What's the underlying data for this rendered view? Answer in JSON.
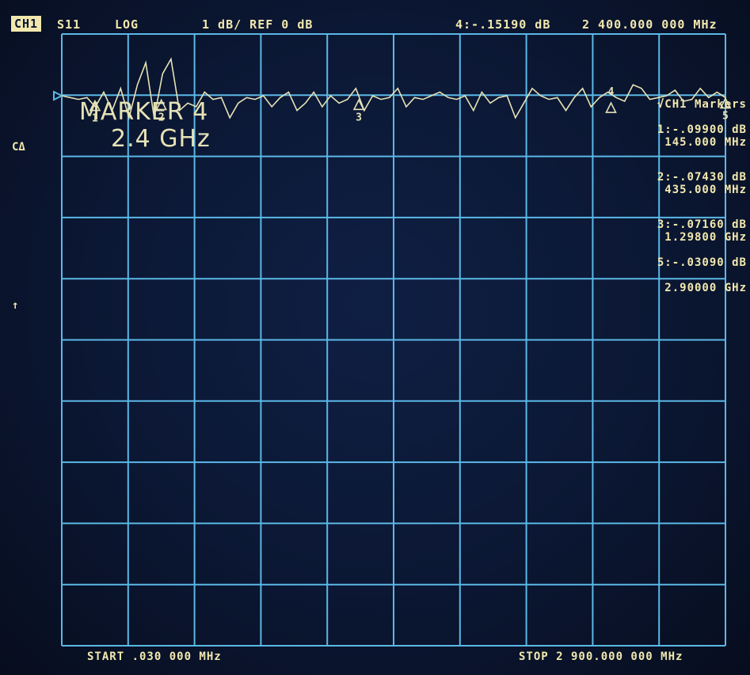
{
  "header": {
    "channel": "CH1",
    "parameter": "S11",
    "format": "LOG",
    "scale": "1 dB/ REF 0 dB",
    "active_marker_readout": "4:-.15190 dB",
    "active_marker_freq": "2 400.000 000 MHz"
  },
  "side": {
    "mode": "CΔ",
    "ref_arrow": "↑"
  },
  "marker_note": {
    "line1": "MARKER 4",
    "line2": "2.4 GHz"
  },
  "marker_list": {
    "title": "√CH1 Markers",
    "items": [
      {
        "label": "1:-.09900 dB",
        "freq": "145.000 MHz"
      },
      {
        "label": "2:-.07430 dB",
        "freq": "435.000 MHz"
      },
      {
        "label": "3:-.07160 dB",
        "freq": "1.29800 GHz"
      },
      {
        "label": "5:-.03090 dB",
        "freq": "2.90000 GHz"
      }
    ]
  },
  "markers_on_trace": [
    "1",
    "2",
    "3",
    "4",
    "5"
  ],
  "footer": {
    "start": "START .030 000 MHz",
    "stop": "STOP 2 900.000 000 MHz"
  },
  "colors": {
    "grid": "#5bb8e6",
    "trace": "#e6e2b6",
    "annotation": "#f2e8ae"
  },
  "chart_data": {
    "type": "line",
    "xlim_mhz": [
      0.03,
      2900
    ],
    "ylim_db": [
      -10,
      0
    ],
    "x_divisions": 10,
    "y_divisions": 10,
    "reference_db": 0,
    "scale_db_per_div": 1,
    "grid": true,
    "series": [
      {
        "values_db": [
          0,
          -0.05,
          -0.1,
          -0.05,
          -0.3,
          0.1,
          -0.4,
          0.2,
          -0.6,
          0.3,
          0.9,
          -0.6,
          0.6,
          1.0,
          -0.4,
          -0.2,
          -0.3,
          0.1,
          -0.1,
          -0.05,
          -0.6,
          -0.2,
          -0.05,
          -0.1,
          0,
          -0.3,
          -0.05,
          0.1,
          -0.4,
          -0.2,
          0.1,
          -0.3,
          0,
          -0.2,
          -0.1,
          0.2,
          -0.4,
          0,
          -0.1,
          -0.05,
          0.2,
          -0.3,
          -0.05,
          -0.1,
          0,
          0.1,
          -0.05,
          -0.1,
          0,
          -0.4,
          0.1,
          -0.2,
          -0.05,
          0,
          -0.6,
          -0.2,
          0.2,
          0,
          -0.1,
          -0.05,
          -0.4,
          -0.05,
          0.2,
          -0.3,
          -0.05,
          0.1,
          -0.05,
          -0.15,
          0.3,
          0.2,
          -0.1,
          -0.05,
          0,
          0.15,
          -0.15,
          -0.1,
          0.2,
          -0.05,
          0.1,
          -0.05
        ]
      }
    ],
    "markers": [
      {
        "id": "1",
        "freq_mhz": 145,
        "db": -0.099
      },
      {
        "id": "2",
        "freq_mhz": 435,
        "db": -0.0743
      },
      {
        "id": "3",
        "freq_mhz": 1298,
        "db": -0.0716
      },
      {
        "id": "4",
        "freq_mhz": 2400,
        "db": -0.1519
      },
      {
        "id": "5",
        "freq_mhz": 2900,
        "db": -0.0309
      }
    ]
  }
}
